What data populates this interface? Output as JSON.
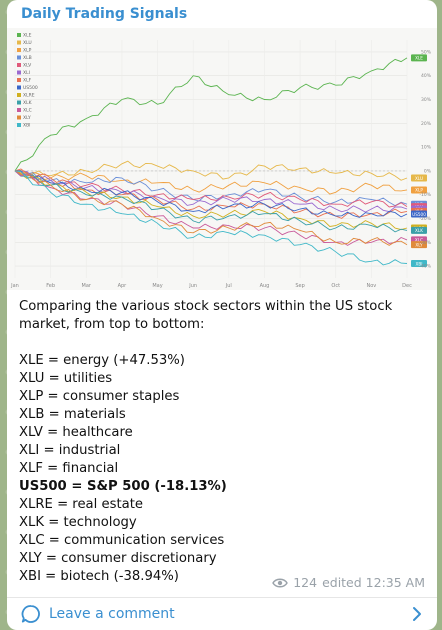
{
  "post": {
    "channel_name": "Daily Trading Signals",
    "intro": "Comparing the various stock sectors within the US stock market, from top to bottom:",
    "sectors": [
      {
        "text": "XLE = energy (+47.53%)",
        "bold": false
      },
      {
        "text": "XLU = utilities",
        "bold": false
      },
      {
        "text": "XLP = consumer staples",
        "bold": false
      },
      {
        "text": "XLB = materials",
        "bold": false
      },
      {
        "text": "XLV = healthcare",
        "bold": false
      },
      {
        "text": "XLI = industrial",
        "bold": false
      },
      {
        "text": "XLF = financial",
        "bold": false
      },
      {
        "text": "US500 = S&P 500 (-18.13%)",
        "bold": true
      },
      {
        "text": "XLRE = real estate",
        "bold": false
      },
      {
        "text": "XLK = technology",
        "bold": false
      },
      {
        "text": "XLC = communication services",
        "bold": false
      },
      {
        "text": "XLY = consumer discretionary",
        "bold": false
      },
      {
        "text": "XBI = biotech (-38.94%)",
        "bold": false
      }
    ],
    "views": "124",
    "edited": "edited 12:35 AM",
    "comment_label": "Leave a comment",
    "icons": {
      "views": "eye-icon",
      "comment": "comment-bubble-icon",
      "chevron": "chevron-right-icon"
    },
    "colors": {
      "accent": "#3a8fd0",
      "meta": "#9aa2a9"
    }
  },
  "chart_data": {
    "type": "line",
    "x": [
      "Jan",
      "Feb",
      "Mar",
      "Apr",
      "May",
      "Jun",
      "Jul",
      "Aug",
      "Sep",
      "Oct",
      "Nov",
      "Dec"
    ],
    "ylim": [
      -45,
      55
    ],
    "series": [
      {
        "name": "XLE",
        "color": "#5bb450",
        "values": [
          0,
          15,
          22,
          30,
          28,
          40,
          32,
          30,
          35,
          36,
          42,
          47.5
        ]
      },
      {
        "name": "XLU",
        "color": "#e6b84a",
        "values": [
          0,
          -2,
          0,
          3,
          2,
          0,
          -3,
          2,
          1,
          -1,
          -1,
          -3
        ]
      },
      {
        "name": "XLP",
        "color": "#f0a040",
        "values": [
          0,
          -3,
          -2,
          -4,
          -5,
          -8,
          -6,
          -5,
          -7,
          -9,
          -6,
          -8
        ]
      },
      {
        "name": "XLB",
        "color": "#6a8fd8",
        "values": [
          0,
          -4,
          -5,
          -3,
          -8,
          -12,
          -10,
          -8,
          -11,
          -13,
          -12,
          -14
        ]
      },
      {
        "name": "XLV",
        "color": "#e05a7a",
        "values": [
          0,
          -5,
          -6,
          -8,
          -10,
          -12,
          -11,
          -10,
          -12,
          -14,
          -13,
          -15
        ]
      },
      {
        "name": "XLI",
        "color": "#9b6ad0",
        "values": [
          0,
          -4,
          -7,
          -9,
          -11,
          -14,
          -12,
          -12,
          -14,
          -16,
          -16,
          -16
        ]
      },
      {
        "name": "XLF",
        "color": "#e87050",
        "values": [
          0,
          -3,
          -8,
          -10,
          -12,
          -16,
          -15,
          -14,
          -17,
          -19,
          -18,
          -17
        ]
      },
      {
        "name": "US500",
        "color": "#3a66c8",
        "values": [
          0,
          -5,
          -8,
          -9,
          -13,
          -17,
          -15,
          -14,
          -16,
          -19,
          -18,
          -18.1
        ]
      },
      {
        "name": "XLRE",
        "color": "#d0b020",
        "values": [
          0,
          -6,
          -9,
          -11,
          -15,
          -19,
          -18,
          -17,
          -20,
          -23,
          -22,
          -24
        ]
      },
      {
        "name": "XLK",
        "color": "#3ba0a8",
        "values": [
          0,
          -6,
          -10,
          -11,
          -16,
          -21,
          -19,
          -18,
          -21,
          -24,
          -23,
          -25
        ]
      },
      {
        "name": "XLC",
        "color": "#c95a9a",
        "values": [
          0,
          -7,
          -12,
          -14,
          -19,
          -24,
          -23,
          -24,
          -27,
          -30,
          -30,
          -29
        ]
      },
      {
        "name": "XLY",
        "color": "#e08a3a",
        "values": [
          0,
          -6,
          -12,
          -14,
          -20,
          -26,
          -24,
          -22,
          -25,
          -30,
          -29,
          -31
        ]
      },
      {
        "name": "XBI",
        "color": "#40b8c8",
        "values": [
          0,
          -9,
          -14,
          -18,
          -22,
          -28,
          -26,
          -27,
          -31,
          -34,
          -38,
          -38.9
        ]
      }
    ]
  }
}
